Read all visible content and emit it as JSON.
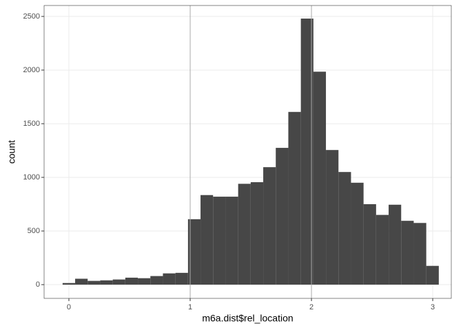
{
  "chart_data": {
    "type": "histogram",
    "x_label": "m6a.dist$rel_location",
    "y_label": "count",
    "bins": [
      -0.052,
      0.0514,
      0.1548,
      0.2582,
      0.3616,
      0.465,
      0.5684,
      0.6718,
      0.7752,
      0.8786,
      0.982,
      1.0854,
      1.1888,
      1.2922,
      1.3956,
      1.499,
      1.6024,
      1.7058,
      1.8092,
      1.9126,
      2.016,
      2.1194,
      2.2228,
      2.3262,
      2.4296,
      2.533,
      2.6364,
      2.7398,
      2.8432,
      2.9466,
      3.05
    ],
    "values": [
      15,
      55,
      35,
      40,
      48,
      65,
      60,
      80,
      105,
      110,
      610,
      835,
      820,
      820,
      940,
      955,
      1095,
      1275,
      1610,
      2480,
      1985,
      1255,
      1050,
      950,
      750,
      650,
      745,
      595,
      575,
      175
    ],
    "color": "#474747",
    "vlines": [
      1,
      2
    ],
    "vline_color": "#aaaaaa",
    "xlim": [
      -0.2045,
      3.153
    ],
    "ylim": [
      -128,
      2602
    ],
    "xticks": [
      0,
      1,
      2,
      3
    ],
    "yticks": [
      0,
      500,
      1000,
      1500,
      2000,
      2500
    ],
    "grid": true
  }
}
